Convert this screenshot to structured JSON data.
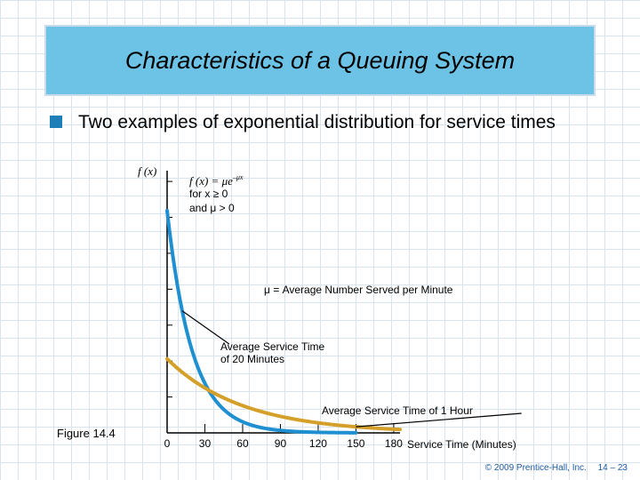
{
  "slide": {
    "title": "Characteristics of a Queuing System",
    "bullet": "Two examples of exponential distribution for service times",
    "figure_label": "Figure 14.4",
    "footer_copyright": "© 2009 Prentice-Hall, Inc.",
    "footer_page": "14 – 23"
  },
  "colors": {
    "title_bg": "#6cc3e6",
    "bullet": "#1e7fb8",
    "curve_fast": "#1e8fd0",
    "curve_slow": "#d4a02a",
    "axis": "#000000"
  },
  "chart_data": {
    "type": "line",
    "ylabel": "f (x)",
    "xlabel": "Service Time (Minutes)",
    "formula": {
      "line1": "f (x) = μe",
      "exponent": "–μx",
      "line2": "for x ≥ 0",
      "line3": "and μ > 0"
    },
    "mu_definition": "μ = Average Number Served per Minute",
    "x_ticks": [
      0,
      30,
      60,
      90,
      120,
      150,
      180
    ],
    "xlim": [
      0,
      185
    ],
    "ylim": [
      0,
      1.18
    ],
    "series": [
      {
        "name": "Average Service Time of 20 Minutes",
        "label_lines": [
          "Average Service Time",
          "of 20 Minutes"
        ],
        "mean": 20,
        "color_key": "curve_fast",
        "label_at_x": 12,
        "label_anchor_x": 14
      },
      {
        "name": "Average Service Time of 1 Hour",
        "label_lines": [
          "Average Service Time of 1 Hour"
        ],
        "mean": 60,
        "color_key": "curve_slow",
        "label_at_x": 150,
        "label_anchor_x": 105
      }
    ],
    "grid": false
  }
}
